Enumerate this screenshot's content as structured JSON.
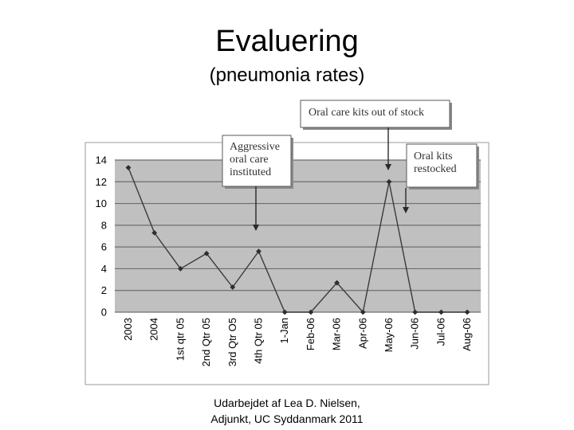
{
  "slide": {
    "title": "Evaluering",
    "subtitle": "(pneumonia rates)",
    "footer_line1": "Udarbejdet af Lea D. Nielsen,",
    "footer_line2": "Adjunkt, UC Syddanmark 2011"
  },
  "chart_data": {
    "type": "line",
    "title": "",
    "xlabel": "",
    "ylabel": "",
    "categories": [
      "2003",
      "2004",
      "1st qtr 05",
      "2nd Qtr 05",
      "3rd Qtr O5",
      "4th Qtr 05",
      "1-Jan",
      "Feb-06",
      "Mar-06",
      "Apr-06",
      "May-06",
      "Jun-06",
      "Jul-06",
      "Aug-06"
    ],
    "series": [
      {
        "values": [
          13.3,
          7.3,
          4.0,
          5.4,
          2.3,
          5.6,
          0,
          0,
          2.7,
          0,
          12.0,
          0,
          0,
          0
        ]
      }
    ],
    "ylim": [
      0,
      14
    ],
    "yticks": [
      "0",
      "2",
      "4",
      "6",
      "8",
      "10",
      "12",
      "14"
    ],
    "grid": true,
    "colors": {
      "plot_bg": "#c0c0c0",
      "line": "#3a3a3a",
      "grid": "#6e6e6e"
    },
    "annotations": [
      {
        "lines": [
          "Oral care kits out of stock"
        ],
        "target_category": "May-06",
        "target_value": 13
      },
      {
        "lines": [
          "Aggressive",
          "oral care",
          "instituted"
        ],
        "target_category": "4th Qtr 05",
        "target_value": 7.5
      },
      {
        "lines": [
          "Oral kits",
          "restocked"
        ],
        "target_category": "Jun-06",
        "target_value": 9.2
      }
    ]
  }
}
